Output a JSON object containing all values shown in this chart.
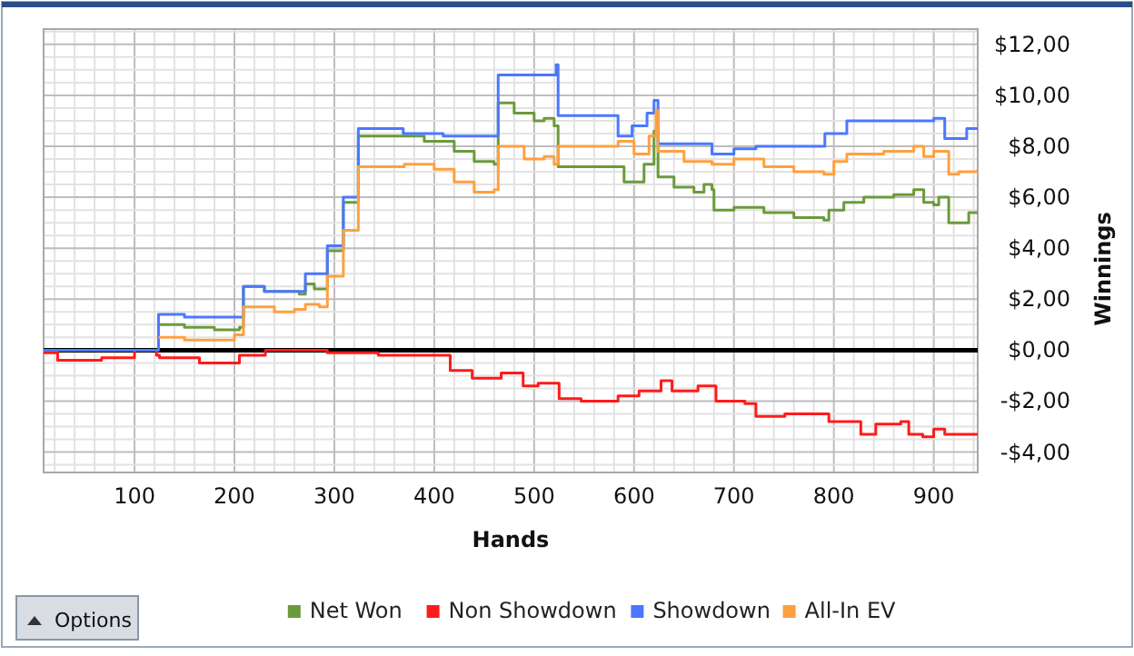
{
  "chart_data": {
    "type": "step",
    "xlabel": "Hands",
    "ylabel": "Winnings",
    "xlim": [
      9,
      944
    ],
    "xticks": [
      100,
      200,
      300,
      400,
      500,
      600,
      700,
      800,
      900
    ],
    "ylim": [
      -4.8,
      12.6
    ],
    "yticks": [
      {
        "value": -4,
        "label": "-$4,00"
      },
      {
        "value": -2,
        "label": "-$2,00"
      },
      {
        "value": 0,
        "label": "$0,00"
      },
      {
        "value": 2,
        "label": "$2,00"
      },
      {
        "value": 4,
        "label": "$4,00"
      },
      {
        "value": 6,
        "label": "$6,00"
      },
      {
        "value": 8,
        "label": "$8,00"
      },
      {
        "value": 10,
        "label": "$10,00"
      },
      {
        "value": 12,
        "label": "$12,00"
      }
    ],
    "grid": true,
    "legend": "bottom",
    "marker": "none",
    "line_style": "solid",
    "ref_lines": [
      {
        "axis": "y",
        "value": 0,
        "color": "#000000"
      }
    ],
    "annotations": [
      "Options"
    ],
    "series": [
      {
        "name": "Net Won",
        "color": "#6b9a3c",
        "x": [
          124,
          150,
          180,
          205,
          209,
          230,
          265,
          271,
          280,
          293,
          309,
          324,
          369,
          390,
          420,
          440,
          460,
          464,
          480,
          500,
          510,
          520,
          524,
          584,
          590,
          610,
          620,
          624,
          640,
          660,
          670,
          678,
          680,
          700,
          730,
          760,
          790,
          795,
          810,
          830,
          860,
          880,
          890,
          900,
          905,
          915,
          925,
          935,
          944
        ],
        "values": [
          1.0,
          0.9,
          0.8,
          0.9,
          2.5,
          2.3,
          2.2,
          2.6,
          2.4,
          3.9,
          5.8,
          8.4,
          8.4,
          8.2,
          7.8,
          7.4,
          7.3,
          9.7,
          9.3,
          9.0,
          9.1,
          8.8,
          7.2,
          7.2,
          6.6,
          7.3,
          8.6,
          6.8,
          6.4,
          6.2,
          6.5,
          6.3,
          5.5,
          5.6,
          5.4,
          5.2,
          5.1,
          5.5,
          5.8,
          6.0,
          6.1,
          6.3,
          5.8,
          5.7,
          6.0,
          5.0,
          5.0,
          5.4,
          5.4
        ]
      },
      {
        "name": "Non Showdown",
        "color": "#ff1a1a",
        "x": [
          9,
          23,
          67,
          100,
          122,
          125,
          165,
          205,
          231,
          293,
          344,
          387,
          416,
          438,
          467,
          489,
          504,
          525,
          547,
          584,
          605,
          627,
          638,
          664,
          682,
          711,
          722,
          751,
          795,
          827,
          842,
          867,
          875,
          889,
          900,
          911,
          944
        ],
        "values": [
          -0.1,
          -0.4,
          -0.3,
          0,
          -0.2,
          -0.3,
          -0.5,
          -0.2,
          0.0,
          -0.1,
          -0.2,
          -0.2,
          -0.8,
          -1.1,
          -0.9,
          -1.4,
          -1.3,
          -1.9,
          -2.0,
          -1.8,
          -1.6,
          -1.2,
          -1.6,
          -1.4,
          -2.0,
          -2.1,
          -2.6,
          -2.5,
          -2.8,
          -3.3,
          -2.9,
          -2.8,
          -3.3,
          -3.4,
          -3.1,
          -3.3,
          -3.3
        ]
      },
      {
        "name": "Showdown",
        "color": "#4a78ff",
        "x": [
          9,
          124,
          150,
          209,
          230,
          271,
          293,
          309,
          324,
          369,
          409,
          464,
          500,
          522,
          524,
          584,
          598,
          613,
          620,
          624,
          678,
          700,
          722,
          791,
          813,
          900,
          911,
          933,
          944
        ],
        "values": [
          0,
          1.4,
          1.3,
          2.5,
          2.3,
          3.0,
          4.1,
          6.0,
          8.7,
          8.5,
          8.4,
          10.8,
          10.8,
          11.2,
          9.2,
          8.4,
          8.8,
          9.3,
          9.8,
          8.1,
          7.7,
          7.9,
          8.0,
          8.5,
          9.0,
          9.1,
          8.3,
          8.7,
          8.7
        ]
      },
      {
        "name": "All-In EV",
        "color": "#ffa040",
        "x": [
          124,
          150,
          200,
          209,
          240,
          260,
          271,
          285,
          293,
          309,
          324,
          370,
          400,
          420,
          440,
          460,
          464,
          490,
          510,
          520,
          524,
          560,
          584,
          600,
          615,
          622,
          624,
          650,
          678,
          700,
          730,
          760,
          790,
          800,
          813,
          850,
          880,
          890,
          900,
          915,
          925,
          944
        ],
        "values": [
          0.5,
          0.4,
          0.6,
          1.7,
          1.5,
          1.6,
          1.8,
          1.7,
          2.9,
          4.7,
          7.2,
          7.3,
          7.1,
          6.6,
          6.2,
          6.3,
          8.0,
          7.5,
          7.6,
          7.3,
          8.0,
          8.0,
          8.2,
          7.7,
          8.4,
          9.4,
          7.8,
          7.4,
          7.3,
          7.5,
          7.2,
          7.0,
          6.9,
          7.4,
          7.7,
          7.8,
          8.0,
          7.6,
          7.8,
          6.9,
          7.0,
          7.1
        ]
      }
    ]
  }
}
